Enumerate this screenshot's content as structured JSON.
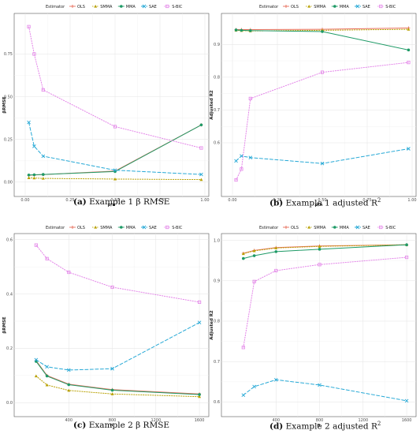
{
  "legend_title": "Estimator",
  "styles": {
    "OLS": {
      "color": "#e8705e",
      "dash": "",
      "marker": "plus"
    },
    "SMMA": {
      "color": "#b8a000",
      "dash": "1.2,1.8",
      "marker": "triangle"
    },
    "MMA": {
      "color": "#1e9a66",
      "dash": "",
      "marker": "circle"
    },
    "SAE": {
      "color": "#27a9d6",
      "dash": "4,2.5",
      "marker": "cross"
    },
    "S-BIC": {
      "color": "#e384e8",
      "dash": "1.2,1.8",
      "marker": "square"
    }
  },
  "captions": [
    {
      "label": "(a)",
      "text": "Example 1 β RMSE"
    },
    {
      "label": "(b)",
      "text": "Example 1 adjusted R",
      "sup": "2"
    },
    {
      "label": "(c)",
      "text": "Example 2 β RMSE"
    },
    {
      "label": "(d)",
      "text": "Example 2 adjusted R",
      "sup": "2"
    }
  ],
  "chart_data": [
    {
      "type": "line",
      "xlabel": "p/n",
      "ylabel": "βRMSE",
      "xlim": [
        0,
        1
      ],
      "ylim": [
        -0.01,
        0.96
      ],
      "xticks": [
        0,
        0.25,
        0.5,
        0.75,
        1
      ],
      "xticklabels": [
        "0.00",
        "0.25",
        "0.50",
        "0.75",
        "1.00"
      ],
      "yticks": [
        0,
        0.25,
        0.5,
        0.75
      ],
      "yticklabels": [
        "0.00",
        "0.25",
        "0.50",
        "0.75"
      ],
      "legend": "top",
      "grid": true,
      "x": [
        0.02,
        0.05,
        0.1,
        0.5,
        0.98
      ],
      "series": [
        {
          "name": "OLS",
          "values": [
            0.04,
            0.042,
            0.044,
            0.065,
            0.335
          ]
        },
        {
          "name": "SMMA",
          "values": [
            0.025,
            0.024,
            0.022,
            0.018,
            0.015
          ]
        },
        {
          "name": "MMA",
          "values": [
            0.042,
            0.043,
            0.045,
            0.062,
            0.335
          ]
        },
        {
          "name": "SAE",
          "values": [
            0.35,
            0.21,
            0.152,
            0.07,
            0.045
          ]
        },
        {
          "name": "S-BIC",
          "values": [
            0.91,
            0.75,
            0.54,
            0.325,
            0.2
          ]
        }
      ]
    },
    {
      "type": "line",
      "xlabel": "p/n",
      "ylabel": "Adjusted R2",
      "xlim": [
        0,
        1
      ],
      "ylim": [
        0.475,
        0.98
      ],
      "xticks": [
        0,
        0.25,
        0.5,
        0.75,
        1
      ],
      "xticklabels": [
        "0.00",
        "0.25",
        "0.50",
        "0.75",
        "1.00"
      ],
      "yticks": [
        0.6,
        0.7,
        0.8,
        0.9
      ],
      "yticklabels": [
        "0.6",
        "0.7",
        "0.8",
        "0.9"
      ],
      "legend": "top",
      "grid": true,
      "x": [
        0.02,
        0.05,
        0.1,
        0.5,
        0.98
      ],
      "series": [
        {
          "name": "OLS",
          "values": [
            0.945,
            0.945,
            0.945,
            0.946,
            0.95
          ]
        },
        {
          "name": "SMMA",
          "values": [
            0.943,
            0.942,
            0.941,
            0.943,
            0.946
          ]
        },
        {
          "name": "MMA",
          "values": [
            0.944,
            0.943,
            0.942,
            0.939,
            0.883
          ]
        },
        {
          "name": "SAE",
          "values": [
            0.545,
            0.56,
            0.555,
            0.537,
            0.582
          ]
        },
        {
          "name": "S-BIC",
          "values": [
            0.487,
            0.52,
            0.735,
            0.815,
            0.845
          ]
        }
      ]
    },
    {
      "type": "line",
      "xlabel": "n",
      "ylabel": "βRMSE",
      "xlim": [
        0,
        1650
      ],
      "ylim": [
        -0.005,
        0.605
      ],
      "xticks": [
        400,
        800,
        1200,
        1600
      ],
      "xticklabels": [
        "400",
        "800",
        "1200",
        "1600"
      ],
      "yticks": [
        0,
        0.2,
        0.4,
        0.6
      ],
      "yticklabels": [
        "0.0",
        "0.2",
        "0.4",
        "0.6"
      ],
      "legend": "top",
      "grid": true,
      "x": [
        100,
        200,
        400,
        800,
        1600
      ],
      "series": [
        {
          "name": "OLS",
          "values": [
            0.155,
            0.1,
            0.068,
            0.048,
            0.032
          ]
        },
        {
          "name": "SMMA",
          "values": [
            0.098,
            0.065,
            0.045,
            0.032,
            0.022
          ]
        },
        {
          "name": "MMA",
          "values": [
            0.152,
            0.098,
            0.066,
            0.046,
            0.03
          ]
        },
        {
          "name": "SAE",
          "values": [
            0.158,
            0.132,
            0.12,
            0.125,
            0.295
          ]
        },
        {
          "name": "S-BIC",
          "values": [
            0.58,
            0.53,
            0.48,
            0.425,
            0.37
          ]
        }
      ]
    },
    {
      "type": "line",
      "xlabel": "n",
      "ylabel": "Adjusted R2",
      "xlim": [
        0,
        1650
      ],
      "ylim": [
        0.595,
        1.005
      ],
      "xticks": [
        400,
        800,
        1200,
        1600
      ],
      "xticklabels": [
        "400",
        "800",
        "1200",
        "1600"
      ],
      "yticks": [
        0.6,
        0.7,
        0.8,
        0.9,
        1.0
      ],
      "yticklabels": [
        "0.6",
        "0.7",
        "0.8",
        "0.9",
        "1.0"
      ],
      "legend": "top",
      "grid": true,
      "x": [
        100,
        200,
        400,
        800,
        1600
      ],
      "series": [
        {
          "name": "OLS",
          "values": [
            0.968,
            0.975,
            0.982,
            0.986,
            0.989
          ]
        },
        {
          "name": "SMMA",
          "values": [
            0.967,
            0.974,
            0.981,
            0.985,
            0.989
          ]
        },
        {
          "name": "MMA",
          "values": [
            0.955,
            0.962,
            0.972,
            0.978,
            0.989
          ]
        },
        {
          "name": "SAE",
          "values": [
            0.617,
            0.638,
            0.655,
            0.642,
            0.603
          ]
        },
        {
          "name": "S-BIC",
          "values": [
            0.735,
            0.898,
            0.925,
            0.94,
            0.958
          ]
        }
      ]
    }
  ]
}
